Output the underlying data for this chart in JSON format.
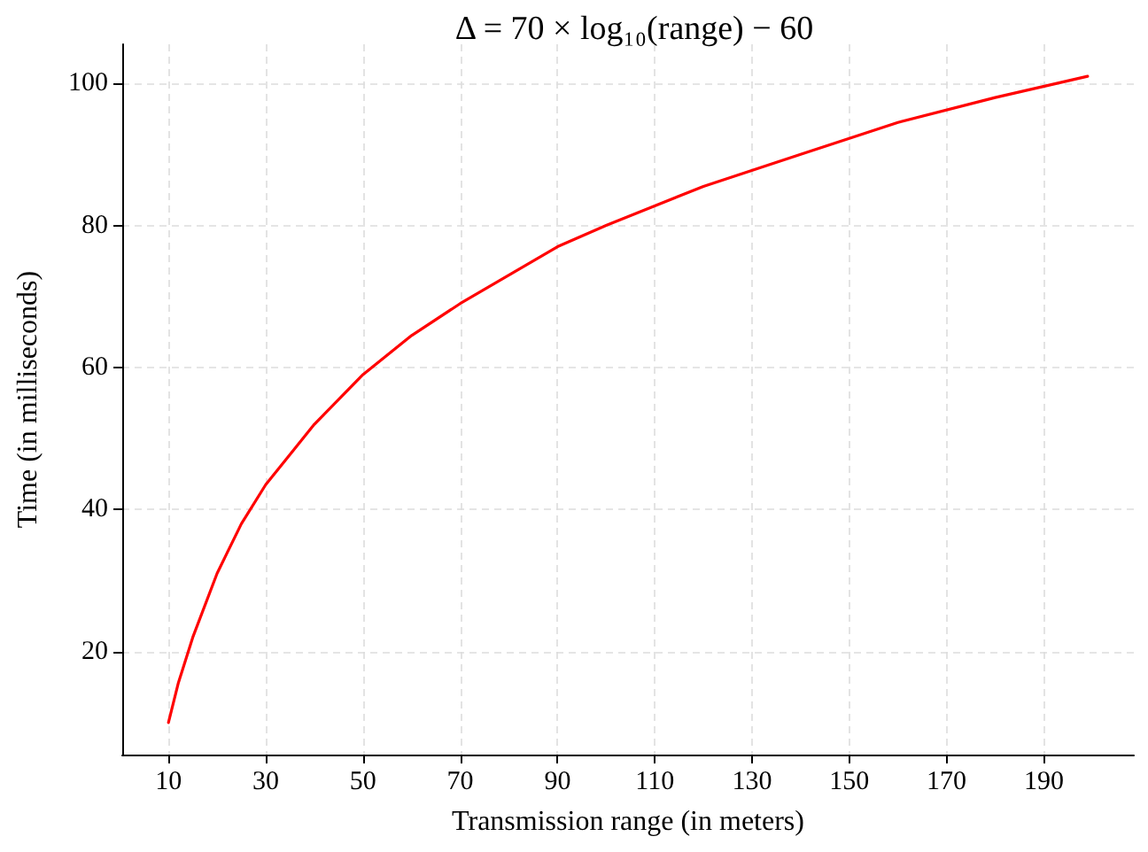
{
  "chart_data": {
    "type": "line",
    "title": "Δ = 70 × log₁₀(range) − 60",
    "xlabel": "Transmission range (in meters)",
    "ylabel": "Time (in milliseconds)",
    "x": [
      10,
      12,
      15,
      20,
      25,
      30,
      40,
      50,
      60,
      70,
      80,
      90,
      100,
      120,
      140,
      160,
      180,
      199
    ],
    "series": [
      {
        "color": "#ff0000",
        "values": [
          10,
          15.5,
          22,
          31,
          38,
          43.5,
          52,
          59,
          64.5,
          69,
          73,
          77,
          80,
          85.5,
          90,
          94.5,
          98,
          101
        ]
      }
    ],
    "xlim": [
      0.5,
      208.5
    ],
    "xticks": [
      10,
      30,
      50,
      70,
      90,
      110,
      130,
      150,
      170,
      190
    ],
    "ylim": [
      5.5,
      105.5
    ],
    "yticks": [
      20,
      40,
      60,
      80,
      100
    ],
    "grid": true,
    "marker": "none",
    "line_style": "solid"
  }
}
